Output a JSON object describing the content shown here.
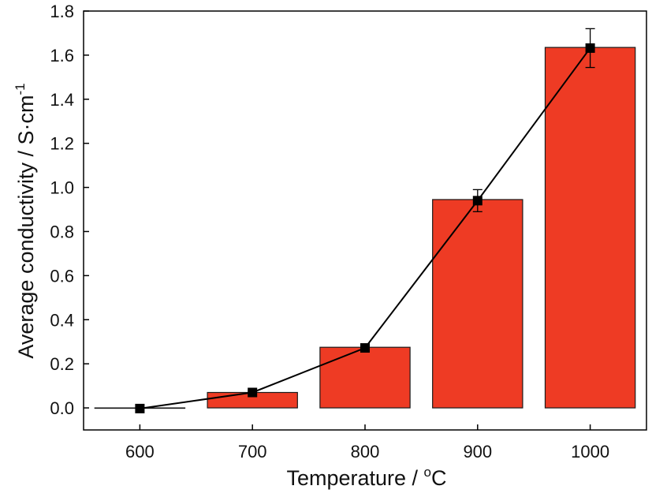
{
  "chart_data": {
    "type": "bar",
    "title": "",
    "xlabel": {
      "text": "Temperature / ",
      "sup": "o",
      "tail": "C"
    },
    "ylabel": {
      "text": "Average conductivity / S·cm",
      "sup": "-1"
    },
    "categories": [
      "600",
      "700",
      "800",
      "900",
      "1000"
    ],
    "values": [
      0.0,
      0.07,
      0.275,
      0.945,
      1.635
    ],
    "line_series": {
      "values": [
        -0.003,
        0.07,
        0.272,
        0.94,
        1.632
      ],
      "error": [
        0.0,
        0.0,
        0.0,
        0.05,
        0.088
      ]
    },
    "ylim": [
      -0.1,
      1.8
    ],
    "yticks": [
      0.0,
      0.2,
      0.4,
      0.6,
      0.8,
      1.0,
      1.2,
      1.4,
      1.6,
      1.8
    ],
    "ytick_labels": [
      "0.0",
      "0.2",
      "0.4",
      "0.6",
      "0.8",
      "1.0",
      "1.2",
      "1.4",
      "1.6",
      "1.8"
    ],
    "grid": false,
    "legend": "none",
    "colors": {
      "bar_fill": "#ee3b24",
      "bar_edge": "#1a1a1a",
      "line": "#000000",
      "marker": "#000000",
      "axis": "#000000"
    }
  }
}
